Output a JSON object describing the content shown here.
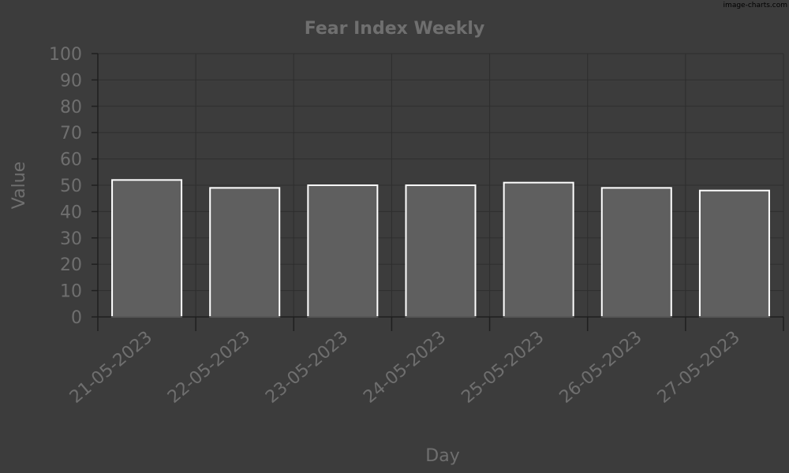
{
  "watermark": "image-charts.com",
  "chart_data": {
    "type": "bar",
    "title": "Fear Index Weekly",
    "xlabel": "Day",
    "ylabel": "Value",
    "categories": [
      "21-05-2023",
      "22-05-2023",
      "23-05-2023",
      "24-05-2023",
      "25-05-2023",
      "26-05-2023",
      "27-05-2023"
    ],
    "values": [
      52,
      49,
      50,
      50,
      51,
      49,
      48
    ],
    "ylim": [
      0,
      100
    ],
    "yticks": [
      "0",
      "10",
      "20",
      "30",
      "40",
      "50",
      "60",
      "70",
      "80",
      "90",
      "100"
    ],
    "grid": true,
    "legend": "none",
    "colors": {
      "background": "#3c3c3c",
      "bar_fill": "#5f5f5f",
      "bar_stroke": "#ffffff",
      "text": "#6f6f6f",
      "grid": "#2e2e2e"
    }
  }
}
